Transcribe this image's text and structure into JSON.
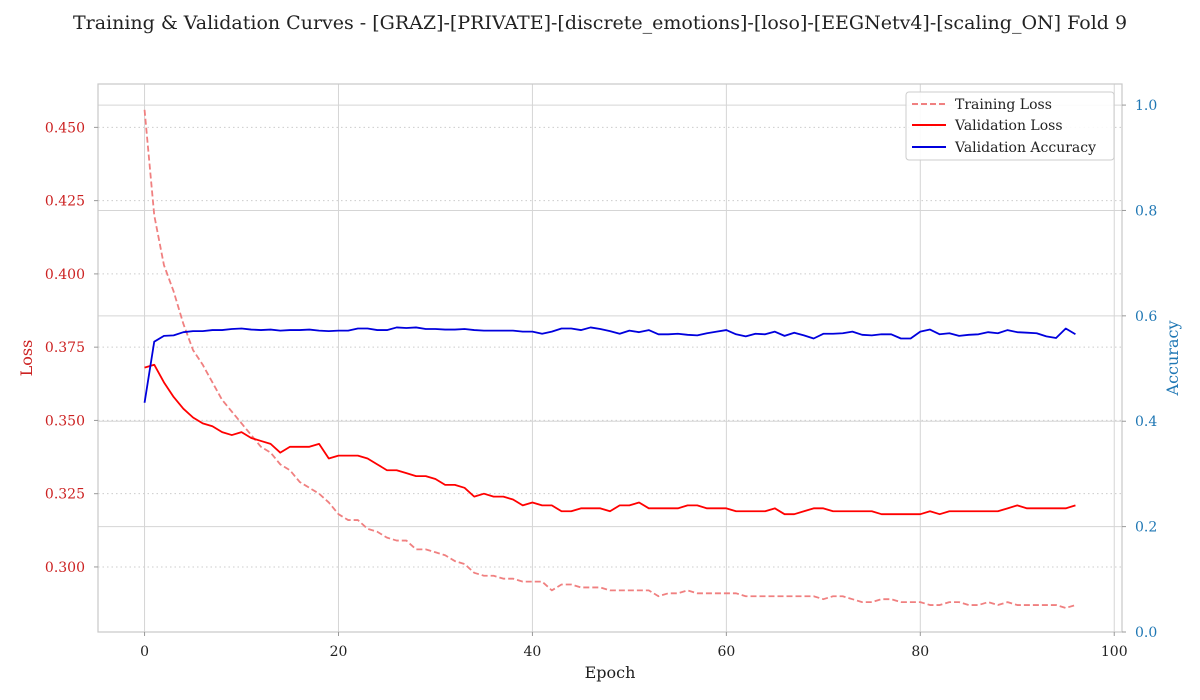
{
  "chart_data": {
    "type": "line",
    "title": "Training & Validation Curves - [GRAZ]-[PRIVATE]-[discrete_emotions]-[loso]-[EEGNetv4]-[scaling_ON] Fold 9",
    "xlabel": "Epoch",
    "ylabel_left": "Loss",
    "ylabel_right": "Accuracy",
    "xlim": [
      -4.8,
      100.8
    ],
    "ylim_left": [
      0.2778,
      0.4648
    ],
    "ylim_right": [
      0.0,
      1.04
    ],
    "x_ticks": [
      0,
      20,
      40,
      60,
      80,
      100
    ],
    "y_ticks_left": [
      "0.300",
      "0.325",
      "0.350",
      "0.375",
      "0.400",
      "0.425",
      "0.450"
    ],
    "y_ticks_right": [
      "0.0",
      "0.2",
      "0.4",
      "0.6",
      "0.8",
      "1.0"
    ],
    "grid": true,
    "legend_position": "top-right",
    "colors": {
      "training_loss": "#f08080",
      "validation_loss": "#ff0000",
      "validation_accuracy": "#0000dd",
      "left_axis": "#cc2222",
      "right_axis": "#1f77b4"
    },
    "series": [
      {
        "name": "Training Loss",
        "axis": "left",
        "style": "dashed",
        "values": [
          0.456,
          0.42,
          0.403,
          0.394,
          0.383,
          0.374,
          0.369,
          0.363,
          0.357,
          0.353,
          0.349,
          0.345,
          0.341,
          0.339,
          0.335,
          0.333,
          0.329,
          0.327,
          0.325,
          0.322,
          0.318,
          0.316,
          0.316,
          0.313,
          0.312,
          0.31,
          0.309,
          0.309,
          0.306,
          0.306,
          0.305,
          0.304,
          0.302,
          0.301,
          0.298,
          0.297,
          0.297,
          0.296,
          0.296,
          0.295,
          0.295,
          0.295,
          0.292,
          0.294,
          0.294,
          0.293,
          0.293,
          0.293,
          0.292,
          0.292,
          0.292,
          0.292,
          0.292,
          0.29,
          0.291,
          0.291,
          0.292,
          0.291,
          0.291,
          0.291,
          0.291,
          0.291,
          0.29,
          0.29,
          0.29,
          0.29,
          0.29,
          0.29,
          0.29,
          0.29,
          0.289,
          0.29,
          0.29,
          0.289,
          0.288,
          0.288,
          0.289,
          0.289,
          0.288,
          0.288,
          0.288,
          0.287,
          0.287,
          0.288,
          0.288,
          0.287,
          0.287,
          0.288,
          0.287,
          0.288,
          0.287,
          0.287,
          0.287,
          0.287,
          0.287,
          0.286,
          0.287
        ]
      },
      {
        "name": "Validation Loss",
        "axis": "left",
        "style": "solid",
        "values": [
          0.368,
          0.369,
          0.363,
          0.358,
          0.354,
          0.351,
          0.349,
          0.348,
          0.346,
          0.345,
          0.346,
          0.344,
          0.343,
          0.342,
          0.339,
          0.341,
          0.341,
          0.341,
          0.342,
          0.337,
          0.338,
          0.338,
          0.338,
          0.337,
          0.335,
          0.333,
          0.333,
          0.332,
          0.331,
          0.331,
          0.33,
          0.328,
          0.328,
          0.327,
          0.324,
          0.325,
          0.324,
          0.324,
          0.323,
          0.321,
          0.322,
          0.321,
          0.321,
          0.319,
          0.319,
          0.32,
          0.32,
          0.32,
          0.319,
          0.321,
          0.321,
          0.322,
          0.32,
          0.32,
          0.32,
          0.32,
          0.321,
          0.321,
          0.32,
          0.32,
          0.32,
          0.319,
          0.319,
          0.319,
          0.319,
          0.32,
          0.318,
          0.318,
          0.319,
          0.32,
          0.32,
          0.319,
          0.319,
          0.319,
          0.319,
          0.319,
          0.318,
          0.318,
          0.318,
          0.318,
          0.318,
          0.319,
          0.318,
          0.319,
          0.319,
          0.319,
          0.319,
          0.319,
          0.319,
          0.32,
          0.321,
          0.32,
          0.32,
          0.32,
          0.32,
          0.32,
          0.321
        ]
      },
      {
        "name": "Validation Accuracy",
        "axis": "right",
        "style": "solid",
        "values": [
          0.435,
          0.551,
          0.562,
          0.563,
          0.569,
          0.571,
          0.571,
          0.573,
          0.573,
          0.575,
          0.576,
          0.574,
          0.573,
          0.574,
          0.572,
          0.573,
          0.573,
          0.574,
          0.572,
          0.571,
          0.572,
          0.572,
          0.576,
          0.576,
          0.573,
          0.573,
          0.578,
          0.577,
          0.578,
          0.575,
          0.575,
          0.574,
          0.574,
          0.575,
          0.573,
          0.572,
          0.572,
          0.572,
          0.572,
          0.57,
          0.57,
          0.566,
          0.57,
          0.576,
          0.576,
          0.573,
          0.578,
          0.575,
          0.571,
          0.566,
          0.572,
          0.569,
          0.573,
          0.565,
          0.565,
          0.566,
          0.564,
          0.563,
          0.567,
          0.57,
          0.573,
          0.565,
          0.561,
          0.566,
          0.565,
          0.57,
          0.562,
          0.568,
          0.563,
          0.557,
          0.566,
          0.566,
          0.567,
          0.57,
          0.564,
          0.563,
          0.565,
          0.565,
          0.557,
          0.557,
          0.57,
          0.574,
          0.565,
          0.567,
          0.562,
          0.564,
          0.565,
          0.569,
          0.567,
          0.573,
          0.569,
          0.568,
          0.567,
          0.561,
          0.558,
          0.576,
          0.565
        ]
      }
    ]
  }
}
